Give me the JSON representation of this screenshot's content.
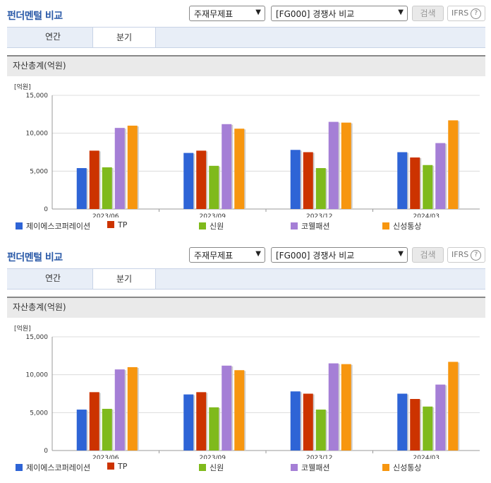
{
  "header": {
    "title": "펀더멘털 비교",
    "select_report": "주재무제표",
    "select_group": "[FG000] 경쟁사 비교",
    "search_label": "검색",
    "ifrs_label": "IFRS",
    "help_glyph": "?"
  },
  "tabs": [
    {
      "label": "연간",
      "active": false
    },
    {
      "label": "분기",
      "active": true
    }
  ],
  "section_title": "자산총계(억원)",
  "chart_data": {
    "type": "bar",
    "title": "자산총계(억원)",
    "unit_label": "[억원]",
    "categories": [
      "2023/06",
      "2023/09",
      "2023/12",
      "2024/03"
    ],
    "ylim": [
      0,
      15000
    ],
    "yticks": [
      0,
      5000,
      10000,
      15000
    ],
    "ytick_labels": [
      "0",
      "5,000",
      "10,000",
      "15,000"
    ],
    "grid": true,
    "legend_position": "bottom",
    "series": [
      {
        "name": "제이에스코퍼레이션",
        "color": "#2e64d6",
        "values": [
          5400,
          7400,
          7800,
          7500
        ]
      },
      {
        "name": "TP",
        "color": "#cc3300",
        "values": [
          7700,
          7700,
          7500,
          6800
        ]
      },
      {
        "name": "신원",
        "color": "#7fba1c",
        "values": [
          5500,
          5700,
          5400,
          5800
        ]
      },
      {
        "name": "코웰패션",
        "color": "#a57fd6",
        "values": [
          10700,
          11200,
          11500,
          8700
        ]
      },
      {
        "name": "신성통상",
        "color": "#f7960f",
        "values": [
          11000,
          10600,
          11400,
          11700
        ]
      }
    ]
  }
}
